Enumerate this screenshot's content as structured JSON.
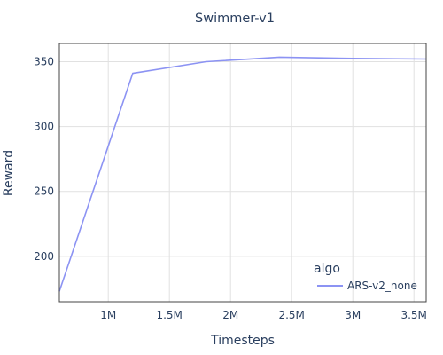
{
  "chart_data": {
    "type": "line",
    "title": "Swimmer-v1",
    "xlabel": "Timesteps",
    "ylabel": "Reward",
    "xlim": [
      600000,
      3600000
    ],
    "ylim": [
      165,
      364
    ],
    "x_ticks": [
      {
        "value": 1000000,
        "label": "1M"
      },
      {
        "value": 1500000,
        "label": "1.5M"
      },
      {
        "value": 2000000,
        "label": "2M"
      },
      {
        "value": 2500000,
        "label": "2.5M"
      },
      {
        "value": 3000000,
        "label": "3M"
      },
      {
        "value": 3500000,
        "label": "3.5M"
      }
    ],
    "y_ticks": [
      {
        "value": 200,
        "label": "200"
      },
      {
        "value": 250,
        "label": "250"
      },
      {
        "value": 300,
        "label": "300"
      },
      {
        "value": 350,
        "label": "350"
      }
    ],
    "grid": true,
    "legend": {
      "title": "algo",
      "position": "bottom-right"
    },
    "series": [
      {
        "name": "ARS-v2_none",
        "color": "#8c93f3",
        "x": [
          600000,
          1200000,
          1800000,
          2400000,
          3000000,
          3600000
        ],
        "y": [
          173,
          341,
          350,
          353.5,
          352.5,
          352
        ]
      }
    ]
  }
}
